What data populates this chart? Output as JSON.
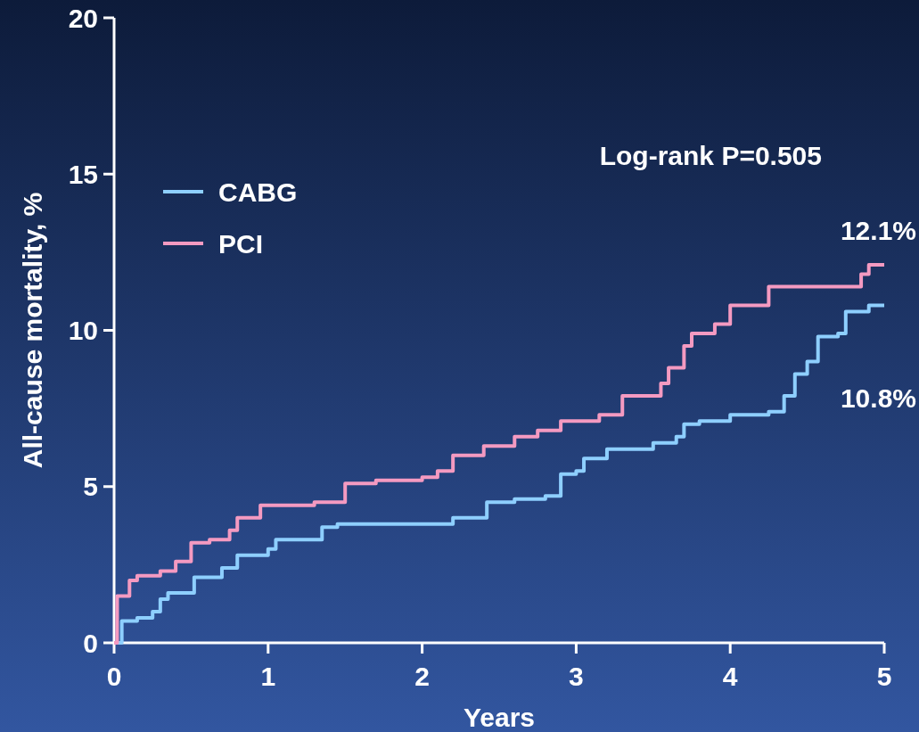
{
  "chart_data": {
    "type": "step",
    "xlabel": "Years",
    "ylabel": "All-cause mortality, %",
    "xlim": [
      0,
      5
    ],
    "ylim": [
      0,
      20
    ],
    "xticks": [
      0,
      1,
      2,
      3,
      4,
      5
    ],
    "yticks": [
      0,
      5,
      10,
      15,
      20
    ],
    "legend": "top left",
    "grid": false,
    "series": [
      {
        "name": "CABG",
        "color": "#8ecfff",
        "x": [
          0,
          0.05,
          0.15,
          0.25,
          0.3,
          0.35,
          0.5,
          0.52,
          0.7,
          0.8,
          1.0,
          1.05,
          1.25,
          1.35,
          1.45,
          2.0,
          2.2,
          2.4,
          2.42,
          2.6,
          2.8,
          2.9,
          3.0,
          3.05,
          3.2,
          3.5,
          3.65,
          3.7,
          3.8,
          4.0,
          4.25,
          4.35,
          4.42,
          4.5,
          4.57,
          4.7,
          4.75,
          4.9,
          5.0
        ],
        "values": [
          0,
          0.7,
          0.8,
          1.0,
          1.4,
          1.6,
          1.6,
          2.1,
          2.4,
          2.8,
          3.0,
          3.3,
          3.3,
          3.7,
          3.8,
          3.8,
          4.0,
          4.0,
          4.5,
          4.6,
          4.7,
          5.4,
          5.5,
          5.9,
          6.2,
          6.4,
          6.6,
          7.0,
          7.1,
          7.3,
          7.4,
          7.9,
          8.6,
          9.0,
          9.8,
          9.9,
          10.6,
          10.8,
          10.8
        ]
      },
      {
        "name": "PCI",
        "color": "#f49ac1",
        "x": [
          0,
          0.02,
          0.1,
          0.15,
          0.3,
          0.4,
          0.5,
          0.62,
          0.75,
          0.8,
          0.95,
          1.3,
          1.5,
          1.7,
          2.0,
          2.1,
          2.2,
          2.4,
          2.6,
          2.75,
          2.9,
          3.15,
          3.3,
          3.55,
          3.6,
          3.7,
          3.75,
          3.9,
          4.0,
          4.2,
          4.25,
          4.7,
          4.85,
          4.9,
          5.0
        ],
        "values": [
          0,
          1.5,
          2.0,
          2.15,
          2.3,
          2.6,
          3.2,
          3.3,
          3.6,
          4.0,
          4.4,
          4.5,
          5.1,
          5.2,
          5.3,
          5.5,
          6.0,
          6.3,
          6.6,
          6.8,
          7.1,
          7.3,
          7.9,
          8.3,
          8.8,
          9.5,
          9.9,
          10.2,
          10.8,
          10.8,
          11.4,
          11.4,
          11.8,
          12.1,
          12.1
        ]
      }
    ],
    "annotations": [
      "Log-rank P=0.505",
      {
        "text": "12.1%",
        "x": 5,
        "y": 12.1
      },
      {
        "text": "10.8%",
        "x": 5,
        "y": 10.8
      }
    ]
  }
}
